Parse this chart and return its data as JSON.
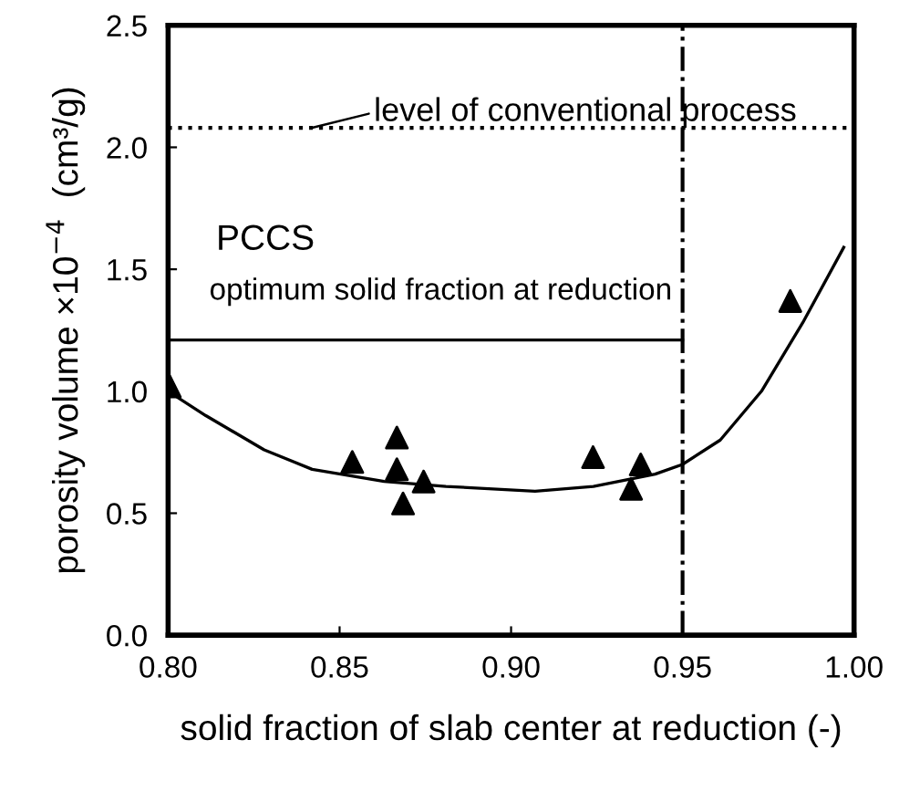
{
  "chart_data": {
    "type": "scatter",
    "xlabel": "solid fraction of slab center at reduction (-)",
    "ylabel": "porosity volume ×10$^{−4}$  (cm³/g)",
    "xlim": [
      0.8,
      1.0
    ],
    "xticks": [
      {
        "value": 0.8,
        "label": "0.80"
      },
      {
        "value": 0.85,
        "label": "0.85"
      },
      {
        "value": 0.9,
        "label": "0.90"
      },
      {
        "value": 0.95,
        "label": "0.95"
      },
      {
        "value": 1.0,
        "label": "1.00"
      }
    ],
    "ylim": [
      0,
      2.5
    ],
    "yticks": [
      {
        "value": 0,
        "label": "0.0"
      },
      {
        "value": 0.5,
        "label": "0.5"
      },
      {
        "value": 1.0,
        "label": "1.0"
      },
      {
        "value": 1.5,
        "label": "1.5"
      },
      {
        "value": 2.0,
        "label": "2.0"
      },
      {
        "value": 2.5,
        "label": "2.5"
      }
    ],
    "grid": false,
    "legend": false,
    "series": [
      {
        "marker": "triangle",
        "color": "#000000",
        "x": [
          0.8005,
          0.8537,
          0.8667,
          0.8667,
          0.8745,
          0.8685,
          0.9239,
          0.9378,
          0.935,
          0.9814
        ],
        "values": [
          1.02,
          0.71,
          0.81,
          0.68,
          0.63,
          0.54,
          0.73,
          0.7,
          0.6,
          1.37
        ]
      },
      {
        "type": "line",
        "marker": "none",
        "line_style": "solid",
        "color": "#000000",
        "x": [
          0.8,
          0.811,
          0.828,
          0.842,
          0.863,
          0.881,
          0.907,
          0.924,
          0.942,
          0.95,
          0.961,
          0.973,
          0.985,
          0.997
        ],
        "values": [
          1.0,
          0.9,
          0.76,
          0.68,
          0.63,
          0.61,
          0.59,
          0.61,
          0.66,
          0.7,
          0.8,
          1.0,
          1.28,
          1.59
        ]
      },
      {
        "type": "line",
        "marker": "none",
        "line_style": "solid",
        "color": "#000000",
        "x": [
          0.8,
          0.95
        ],
        "values": [
          1.21,
          1.21
        ]
      }
    ],
    "ref_lines": [
      {
        "axis": "y",
        "value": 2.08,
        "label": "level of conventional process",
        "line_style": "dotted",
        "color": "#000000"
      },
      {
        "axis": "x",
        "value": 0.95,
        "line_style": "dashdot",
        "color": "#000000"
      }
    ],
    "annotations": [
      "PCCS",
      "optimum solid fraction at reduction"
    ]
  }
}
